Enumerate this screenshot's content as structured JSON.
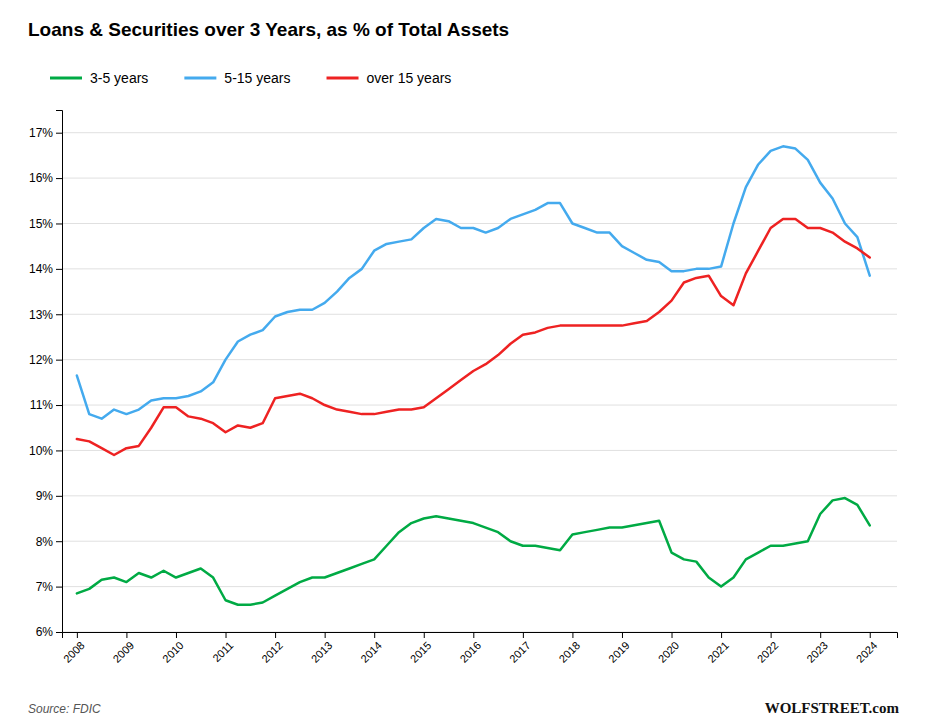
{
  "chart_data": {
    "type": "line",
    "title": "Loans & Securities over 3 Years, as % of Total Assets",
    "annotations": [
      "Source: FDIC",
      "WOLFSTREET.com"
    ],
    "x": [
      2008,
      2008.25,
      2008.5,
      2008.75,
      2009,
      2009.25,
      2009.5,
      2009.75,
      2010,
      2010.25,
      2010.5,
      2010.75,
      2011,
      2011.25,
      2011.5,
      2011.75,
      2012,
      2012.25,
      2012.5,
      2012.75,
      2013,
      2013.25,
      2013.5,
      2013.75,
      2014,
      2014.25,
      2014.5,
      2014.75,
      2015,
      2015.25,
      2015.5,
      2015.75,
      2016,
      2016.25,
      2016.5,
      2016.75,
      2017,
      2017.25,
      2017.5,
      2017.75,
      2018,
      2018.25,
      2018.5,
      2018.75,
      2019,
      2019.25,
      2019.5,
      2019.75,
      2020,
      2020.25,
      2020.5,
      2020.75,
      2021,
      2021.25,
      2021.5,
      2021.75,
      2022,
      2022.25,
      2022.5,
      2022.75,
      2023,
      2023.25,
      2023.5,
      2023.75,
      2024
    ],
    "series": [
      {
        "name": "3-5 years",
        "color": "#00aa44",
        "values": [
          0.0685,
          0.0695,
          0.0715,
          0.072,
          0.071,
          0.073,
          0.072,
          0.0735,
          0.072,
          0.073,
          0.074,
          0.072,
          0.067,
          0.066,
          0.066,
          0.0665,
          0.068,
          0.0695,
          0.071,
          0.072,
          0.072,
          0.073,
          0.074,
          0.075,
          0.076,
          0.079,
          0.082,
          0.084,
          0.085,
          0.0855,
          0.085,
          0.0845,
          0.084,
          0.083,
          0.082,
          0.08,
          0.079,
          0.079,
          0.0785,
          0.078,
          0.0815,
          0.082,
          0.0825,
          0.083,
          0.083,
          0.0835,
          0.084,
          0.0845,
          0.0775,
          0.076,
          0.0755,
          0.072,
          0.07,
          0.072,
          0.076,
          0.0775,
          0.079,
          0.079,
          0.0795,
          0.08,
          0.086,
          0.089,
          0.0895,
          0.088,
          0.0835
        ]
      },
      {
        "name": "5-15 years",
        "color": "#44aaee",
        "values": [
          0.1165,
          0.108,
          0.107,
          0.109,
          0.108,
          0.109,
          0.111,
          0.1115,
          0.1115,
          0.112,
          0.113,
          0.115,
          0.12,
          0.124,
          0.1255,
          0.1265,
          0.1295,
          0.1305,
          0.131,
          0.131,
          0.1325,
          0.135,
          0.138,
          0.14,
          0.144,
          0.1455,
          0.146,
          0.1465,
          0.149,
          0.151,
          0.1505,
          0.149,
          0.149,
          0.148,
          0.149,
          0.151,
          0.152,
          0.153,
          0.1545,
          0.1545,
          0.15,
          0.149,
          0.148,
          0.148,
          0.145,
          0.1435,
          0.142,
          0.1415,
          0.1395,
          0.1395,
          0.14,
          0.14,
          0.1405,
          0.15,
          0.158,
          0.163,
          0.166,
          0.167,
          0.1665,
          0.164,
          0.159,
          0.1555,
          0.15,
          0.147,
          0.1385
        ]
      },
      {
        "name": "over 15 years",
        "color": "#ee2222",
        "values": [
          0.1025,
          0.102,
          0.1005,
          0.099,
          0.1005,
          0.101,
          0.105,
          0.1095,
          0.1095,
          0.1075,
          0.107,
          0.106,
          0.104,
          0.1055,
          0.105,
          0.106,
          0.1115,
          0.112,
          0.1125,
          0.1115,
          0.11,
          0.109,
          0.1085,
          0.108,
          0.108,
          0.1085,
          0.109,
          0.109,
          0.1095,
          0.1115,
          0.1135,
          0.1155,
          0.1175,
          0.119,
          0.121,
          0.1235,
          0.1255,
          0.126,
          0.127,
          0.1275,
          0.1275,
          0.1275,
          0.1275,
          0.1275,
          0.1275,
          0.128,
          0.1285,
          0.1305,
          0.133,
          0.137,
          0.138,
          0.1385,
          0.134,
          0.132,
          0.139,
          0.144,
          0.149,
          0.151,
          0.151,
          0.149,
          0.149,
          0.148,
          0.146,
          0.1445,
          0.1425
        ]
      }
    ],
    "xlim": [
      2007.7,
      2024.55
    ],
    "xticks": [
      2008,
      2009,
      2010,
      2011,
      2012,
      2013,
      2014,
      2015,
      2016,
      2017,
      2018,
      2019,
      2020,
      2021,
      2022,
      2023,
      2024
    ],
    "ylim": [
      0.06,
      0.175
    ],
    "yticks": [
      {
        "value": 0.06,
        "label": "6%"
      },
      {
        "value": 0.07,
        "label": "7%"
      },
      {
        "value": 0.08,
        "label": "8%"
      },
      {
        "value": 0.09,
        "label": "9%"
      },
      {
        "value": 0.1,
        "label": "10%"
      },
      {
        "value": 0.11,
        "label": "11%"
      },
      {
        "value": 0.12,
        "label": "12%"
      },
      {
        "value": 0.13,
        "label": "13%"
      },
      {
        "value": 0.14,
        "label": "14%"
      },
      {
        "value": 0.15,
        "label": "15%"
      },
      {
        "value": 0.16,
        "label": "16%"
      },
      {
        "value": 0.17,
        "label": "17%"
      }
    ],
    "grid": true,
    "legend": "top-left"
  }
}
